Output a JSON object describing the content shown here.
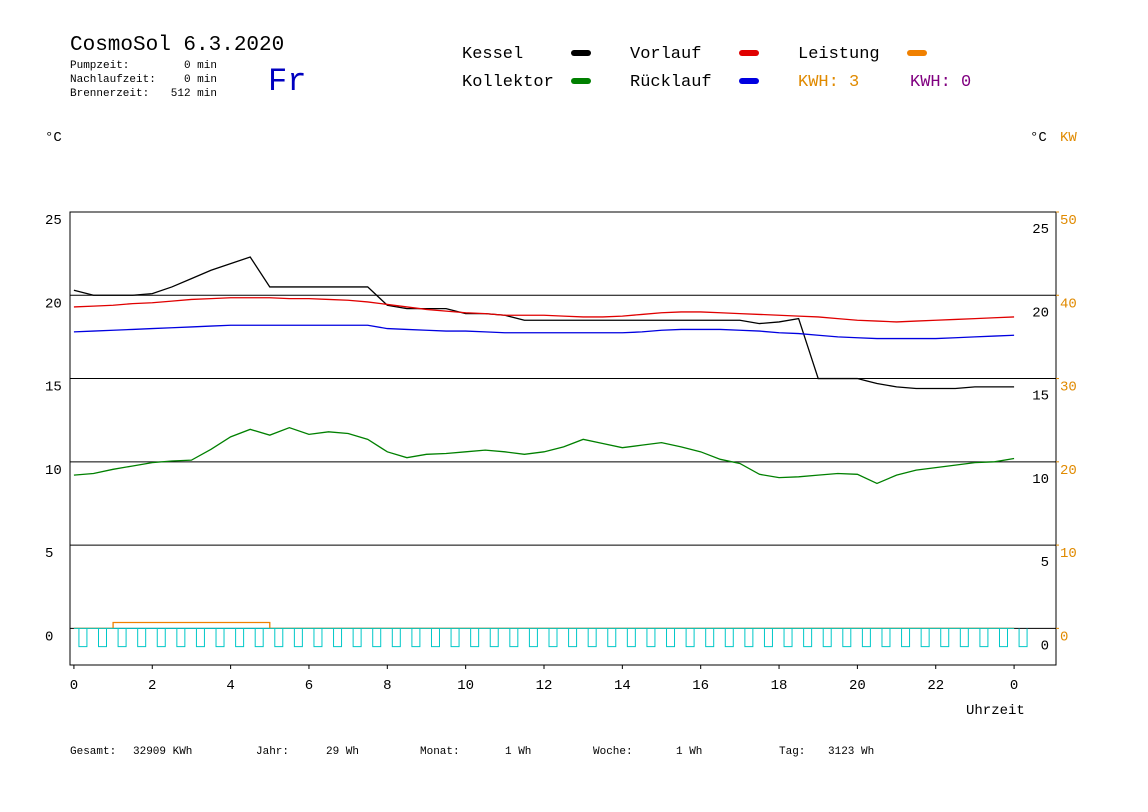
{
  "header": {
    "title": "CosmoSol 6.3.2020",
    "day": "Fr",
    "info": [
      {
        "label": "Pumpzeit:",
        "value": "0 min"
      },
      {
        "label": "Nachlaufzeit:",
        "value": "0 min"
      },
      {
        "label": "Brennerzeit:",
        "value": "512 min"
      }
    ],
    "kwh": [
      {
        "text": "KWH: 3",
        "color": "#e08a00"
      },
      {
        "text": "KWH: 0",
        "color": "#800080"
      }
    ]
  },
  "chart_data": {
    "type": "line",
    "ylabel": "°C",
    "y2label_left": "°C",
    "y2label": "KW",
    "xlabel": "Uhrzeit",
    "x": [
      0,
      0.5,
      1,
      1.5,
      2,
      2.5,
      3,
      3.5,
      4,
      4.5,
      5,
      5.5,
      6,
      6.5,
      7,
      7.5,
      8,
      8.5,
      9,
      9.5,
      10,
      10.5,
      11,
      11.5,
      12,
      12.5,
      13,
      13.5,
      14,
      14.5,
      15,
      15.5,
      16,
      16.5,
      17,
      17.5,
      18,
      18.5,
      19,
      19.5,
      20,
      20.5,
      21,
      21.5,
      22,
      22.5,
      23,
      23.5,
      24
    ],
    "xlim": [
      -0.1,
      25.07
    ],
    "xticks": [
      0,
      2,
      4,
      6,
      8,
      10,
      12,
      14,
      16,
      18,
      20,
      22,
      {
        "value": 24,
        "label": "0"
      }
    ],
    "ylim": [
      -2.2,
      25
    ],
    "yticks": [
      0,
      5,
      10,
      15,
      20,
      25
    ],
    "y2lim": [
      -4.4,
      50
    ],
    "y2ticks": [
      0,
      10,
      20,
      30,
      40,
      50
    ],
    "y2color": "#e08a00",
    "grid": true,
    "series": [
      {
        "name": "Kessel",
        "color": "#000000",
        "values": [
          20.3,
          20.0,
          20.0,
          20.0,
          20.1,
          20.5,
          21.0,
          21.5,
          21.9,
          22.3,
          20.5,
          20.5,
          20.5,
          20.5,
          20.5,
          20.5,
          19.4,
          19.2,
          19.2,
          19.2,
          18.9,
          18.9,
          18.8,
          18.5,
          18.5,
          18.5,
          18.5,
          18.5,
          18.5,
          18.5,
          18.5,
          18.5,
          18.5,
          18.5,
          18.5,
          18.3,
          18.4,
          18.6,
          15.0,
          15.0,
          15.0,
          14.7,
          14.5,
          14.4,
          14.4,
          14.4,
          14.5,
          14.5,
          14.5
        ]
      },
      {
        "name": "Vorlauf",
        "color": "#e00000",
        "values": [
          19.3,
          19.35,
          19.4,
          19.5,
          19.55,
          19.65,
          19.75,
          19.8,
          19.85,
          19.85,
          19.85,
          19.8,
          19.8,
          19.75,
          19.7,
          19.6,
          19.45,
          19.3,
          19.15,
          19.05,
          18.95,
          18.9,
          18.8,
          18.8,
          18.8,
          18.75,
          18.7,
          18.7,
          18.75,
          18.85,
          18.95,
          19.0,
          19.0,
          18.95,
          18.9,
          18.85,
          18.8,
          18.75,
          18.7,
          18.6,
          18.5,
          18.45,
          18.4,
          18.45,
          18.5,
          18.55,
          18.6,
          18.65,
          18.7
        ]
      },
      {
        "name": "Leistung",
        "color": "#f08000",
        "axis": "y2",
        "step": "post",
        "values": [
          0,
          0,
          0.7,
          0.7,
          0.7,
          0.7,
          0.7,
          0.7,
          0.7,
          0.7,
          0,
          0,
          0,
          0,
          0,
          0,
          0,
          0,
          0,
          0,
          0,
          0,
          0,
          0,
          0,
          0,
          0,
          0,
          0,
          0,
          0,
          0,
          0,
          0,
          0,
          0,
          0,
          0,
          0,
          0,
          0,
          0,
          0,
          0,
          0,
          0,
          0,
          0,
          0
        ]
      },
      {
        "name": "Kollektor",
        "color": "#008000",
        "values": [
          9.2,
          9.3,
          9.55,
          9.75,
          9.95,
          10.05,
          10.1,
          10.75,
          11.5,
          11.95,
          11.6,
          12.05,
          11.65,
          11.8,
          11.7,
          11.35,
          10.6,
          10.25,
          10.45,
          10.5,
          10.6,
          10.7,
          10.6,
          10.45,
          10.6,
          10.9,
          11.35,
          11.1,
          10.85,
          11.0,
          11.15,
          10.9,
          10.6,
          10.15,
          9.9,
          9.25,
          9.05,
          9.1,
          9.2,
          9.3,
          9.25,
          8.7,
          9.2,
          9.5,
          9.65,
          9.8,
          9.95,
          10.0,
          10.2
        ]
      },
      {
        "name": "Rücklauf",
        "color": "#0000e0",
        "values": [
          17.8,
          17.85,
          17.9,
          17.95,
          18.0,
          18.05,
          18.1,
          18.15,
          18.2,
          18.2,
          18.2,
          18.2,
          18.2,
          18.2,
          18.2,
          18.2,
          18.0,
          17.95,
          17.9,
          17.85,
          17.85,
          17.8,
          17.75,
          17.75,
          17.75,
          17.75,
          17.75,
          17.75,
          17.75,
          17.8,
          17.9,
          17.95,
          17.95,
          17.95,
          17.9,
          17.85,
          17.75,
          17.7,
          17.6,
          17.5,
          17.45,
          17.4,
          17.4,
          17.4,
          17.4,
          17.45,
          17.5,
          17.55,
          17.6
        ]
      },
      {
        "color": "#00c8c8",
        "mark": "pulse",
        "values": [
          -1.1,
          -1.1,
          -1.1,
          -1.1,
          -1.1,
          -1.1,
          -1.1,
          -1.1,
          -1.1,
          -1.1,
          -1.1,
          -1.1,
          -1.1,
          -1.1,
          -1.1,
          -1.1,
          -1.1,
          -1.1,
          -1.1,
          -1.1,
          -1.1,
          -1.1,
          -1.1,
          -1.1,
          -1.1,
          -1.1,
          -1.1,
          -1.1,
          -1.1,
          -1.1,
          -1.1,
          -1.1,
          -1.1,
          -1.1,
          -1.1,
          -1.1,
          -1.1,
          -1.1,
          -1.1,
          -1.1,
          -1.1,
          -1.1,
          -1.1,
          -1.1,
          -1.1,
          -1.1,
          -1.1,
          -1.1,
          -1.1
        ]
      }
    ]
  },
  "footer": [
    {
      "label": "Gesamt:",
      "value": "32909 KWh"
    },
    {
      "label": "Jahr:",
      "value": "29 Wh"
    },
    {
      "label": "Monat:",
      "value": "1 Wh"
    },
    {
      "label": "Woche:",
      "value": "1 Wh"
    },
    {
      "label": "Tag:",
      "value": "3123 Wh"
    }
  ]
}
